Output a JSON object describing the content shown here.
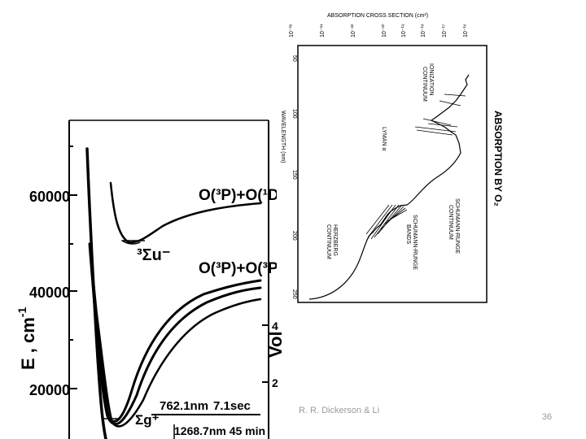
{
  "left_figure": {
    "y_axis_label": "E , cm",
    "y_axis_exp": "-1",
    "y_ticks": [
      "60000",
      "40000",
      "20000"
    ],
    "right_axis_unit": "Vol",
    "right_axis_ticks": [
      "4",
      "2"
    ],
    "upper_state_label": "O(³P)+O(¹D)",
    "lower_state_label": "O(³P)+O(³P)",
    "upper_term": "³Σu⁻",
    "transition_1_wavelength": "762.1nm",
    "transition_1_lifetime": "7.1sec",
    "transition_2": "1268.7nm 45 min",
    "lower_term": "Σg⁺"
  },
  "right_figure": {
    "title_top": "ABSORPTION CROSS SECTION (cm²)",
    "cross_section_ticks": [
      "10⁻²⁶",
      "10⁻²⁴",
      "10⁻²²",
      "10⁻²⁰",
      "10⁻¹⁹",
      "10⁻¹⁸",
      "10⁻¹⁷",
      "10⁻¹⁶"
    ],
    "wavelength_label": "WAVELENGTH (nm)",
    "wavelength_ticks": [
      "50",
      "100",
      "150",
      "200",
      "250"
    ],
    "plot_title": "ABSORPTION BY O₂",
    "labels": {
      "ionization": [
        "IONIZATION",
        "CONTINUUM"
      ],
      "lyman": "LYMAN α",
      "schumann_continuum": [
        "SCHUMANN-RUNGE",
        "CONTINUUM"
      ],
      "schumann_bands": [
        "SCHUMANN-RUNGE",
        "BANDS"
      ],
      "herzberg": [
        "HERZBERG",
        "CONTINUUM"
      ]
    }
  },
  "footer": {
    "credit": "R. R. Dickerson & Li",
    "slide_number": "36"
  }
}
